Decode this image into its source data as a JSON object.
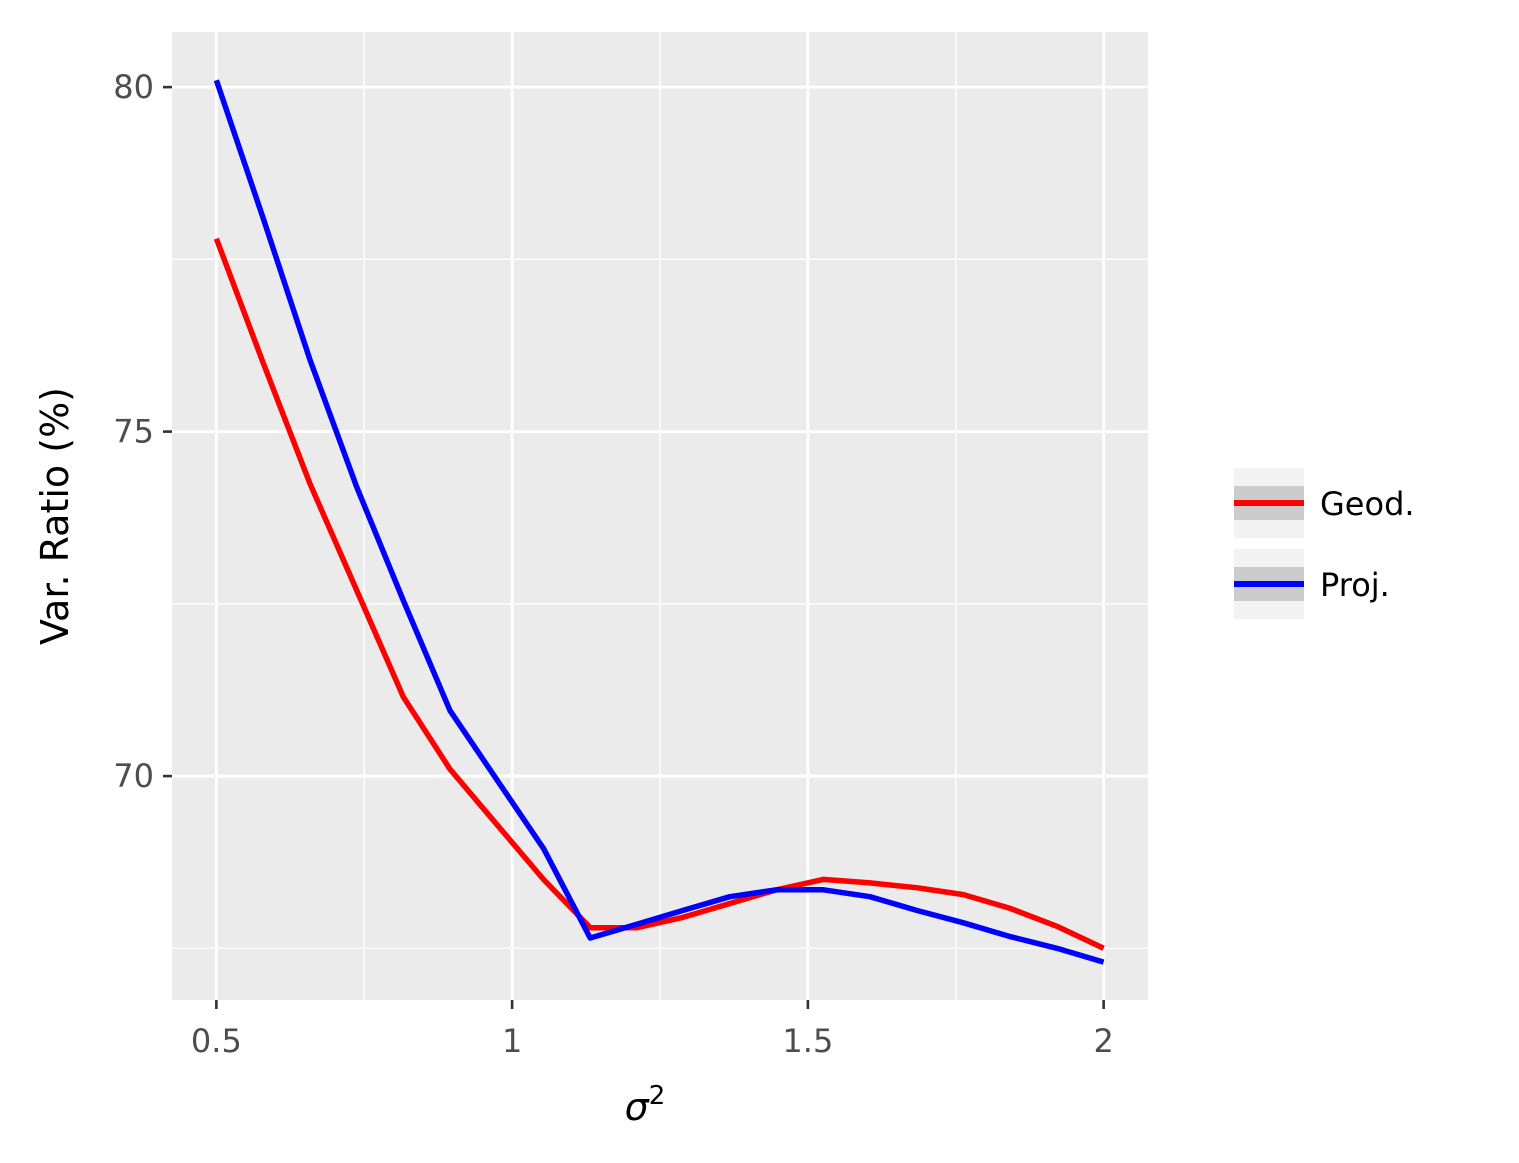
{
  "chart_data": {
    "type": "line",
    "title": "",
    "xlabel": "σ",
    "xlabel_superscript": "2",
    "ylabel": "Var. Ratio (%)",
    "xlim": [
      0.425,
      2.075
    ],
    "ylim": [
      66.75,
      80.8
    ],
    "x_ticks": [
      0.5,
      1,
      1.5,
      2
    ],
    "x_tick_labels": [
      "0.5",
      "1",
      "1.5",
      "2"
    ],
    "y_ticks": [
      70,
      75,
      80
    ],
    "y_tick_labels": [
      "70",
      "75",
      "80"
    ],
    "x_minor_ticks": [
      0.75,
      1.25,
      1.75
    ],
    "y_minor_ticks": [
      67.5,
      72.5,
      77.5
    ],
    "grid": true,
    "legend_position": "right",
    "x": [
      0.5,
      0.579,
      0.658,
      0.737,
      0.816,
      0.895,
      0.974,
      1.053,
      1.132,
      1.211,
      1.289,
      1.368,
      1.447,
      1.526,
      1.605,
      1.684,
      1.763,
      1.842,
      1.921,
      2.0
    ],
    "series": [
      {
        "name": "Geod.",
        "color": "#ff0000",
        "values": [
          77.8,
          76.0,
          74.25,
          72.7,
          71.15,
          70.1,
          69.3,
          68.5,
          67.8,
          67.8,
          67.95,
          68.15,
          68.35,
          68.5,
          68.45,
          68.38,
          68.28,
          68.08,
          67.82,
          67.5
        ]
      },
      {
        "name": "Proj.",
        "color": "#0000ff",
        "values": [
          80.1,
          78.1,
          76.05,
          74.2,
          72.55,
          70.95,
          69.95,
          68.95,
          67.65,
          67.85,
          68.05,
          68.25,
          68.35,
          68.35,
          68.25,
          68.05,
          67.87,
          67.67,
          67.5,
          67.3
        ]
      }
    ]
  }
}
